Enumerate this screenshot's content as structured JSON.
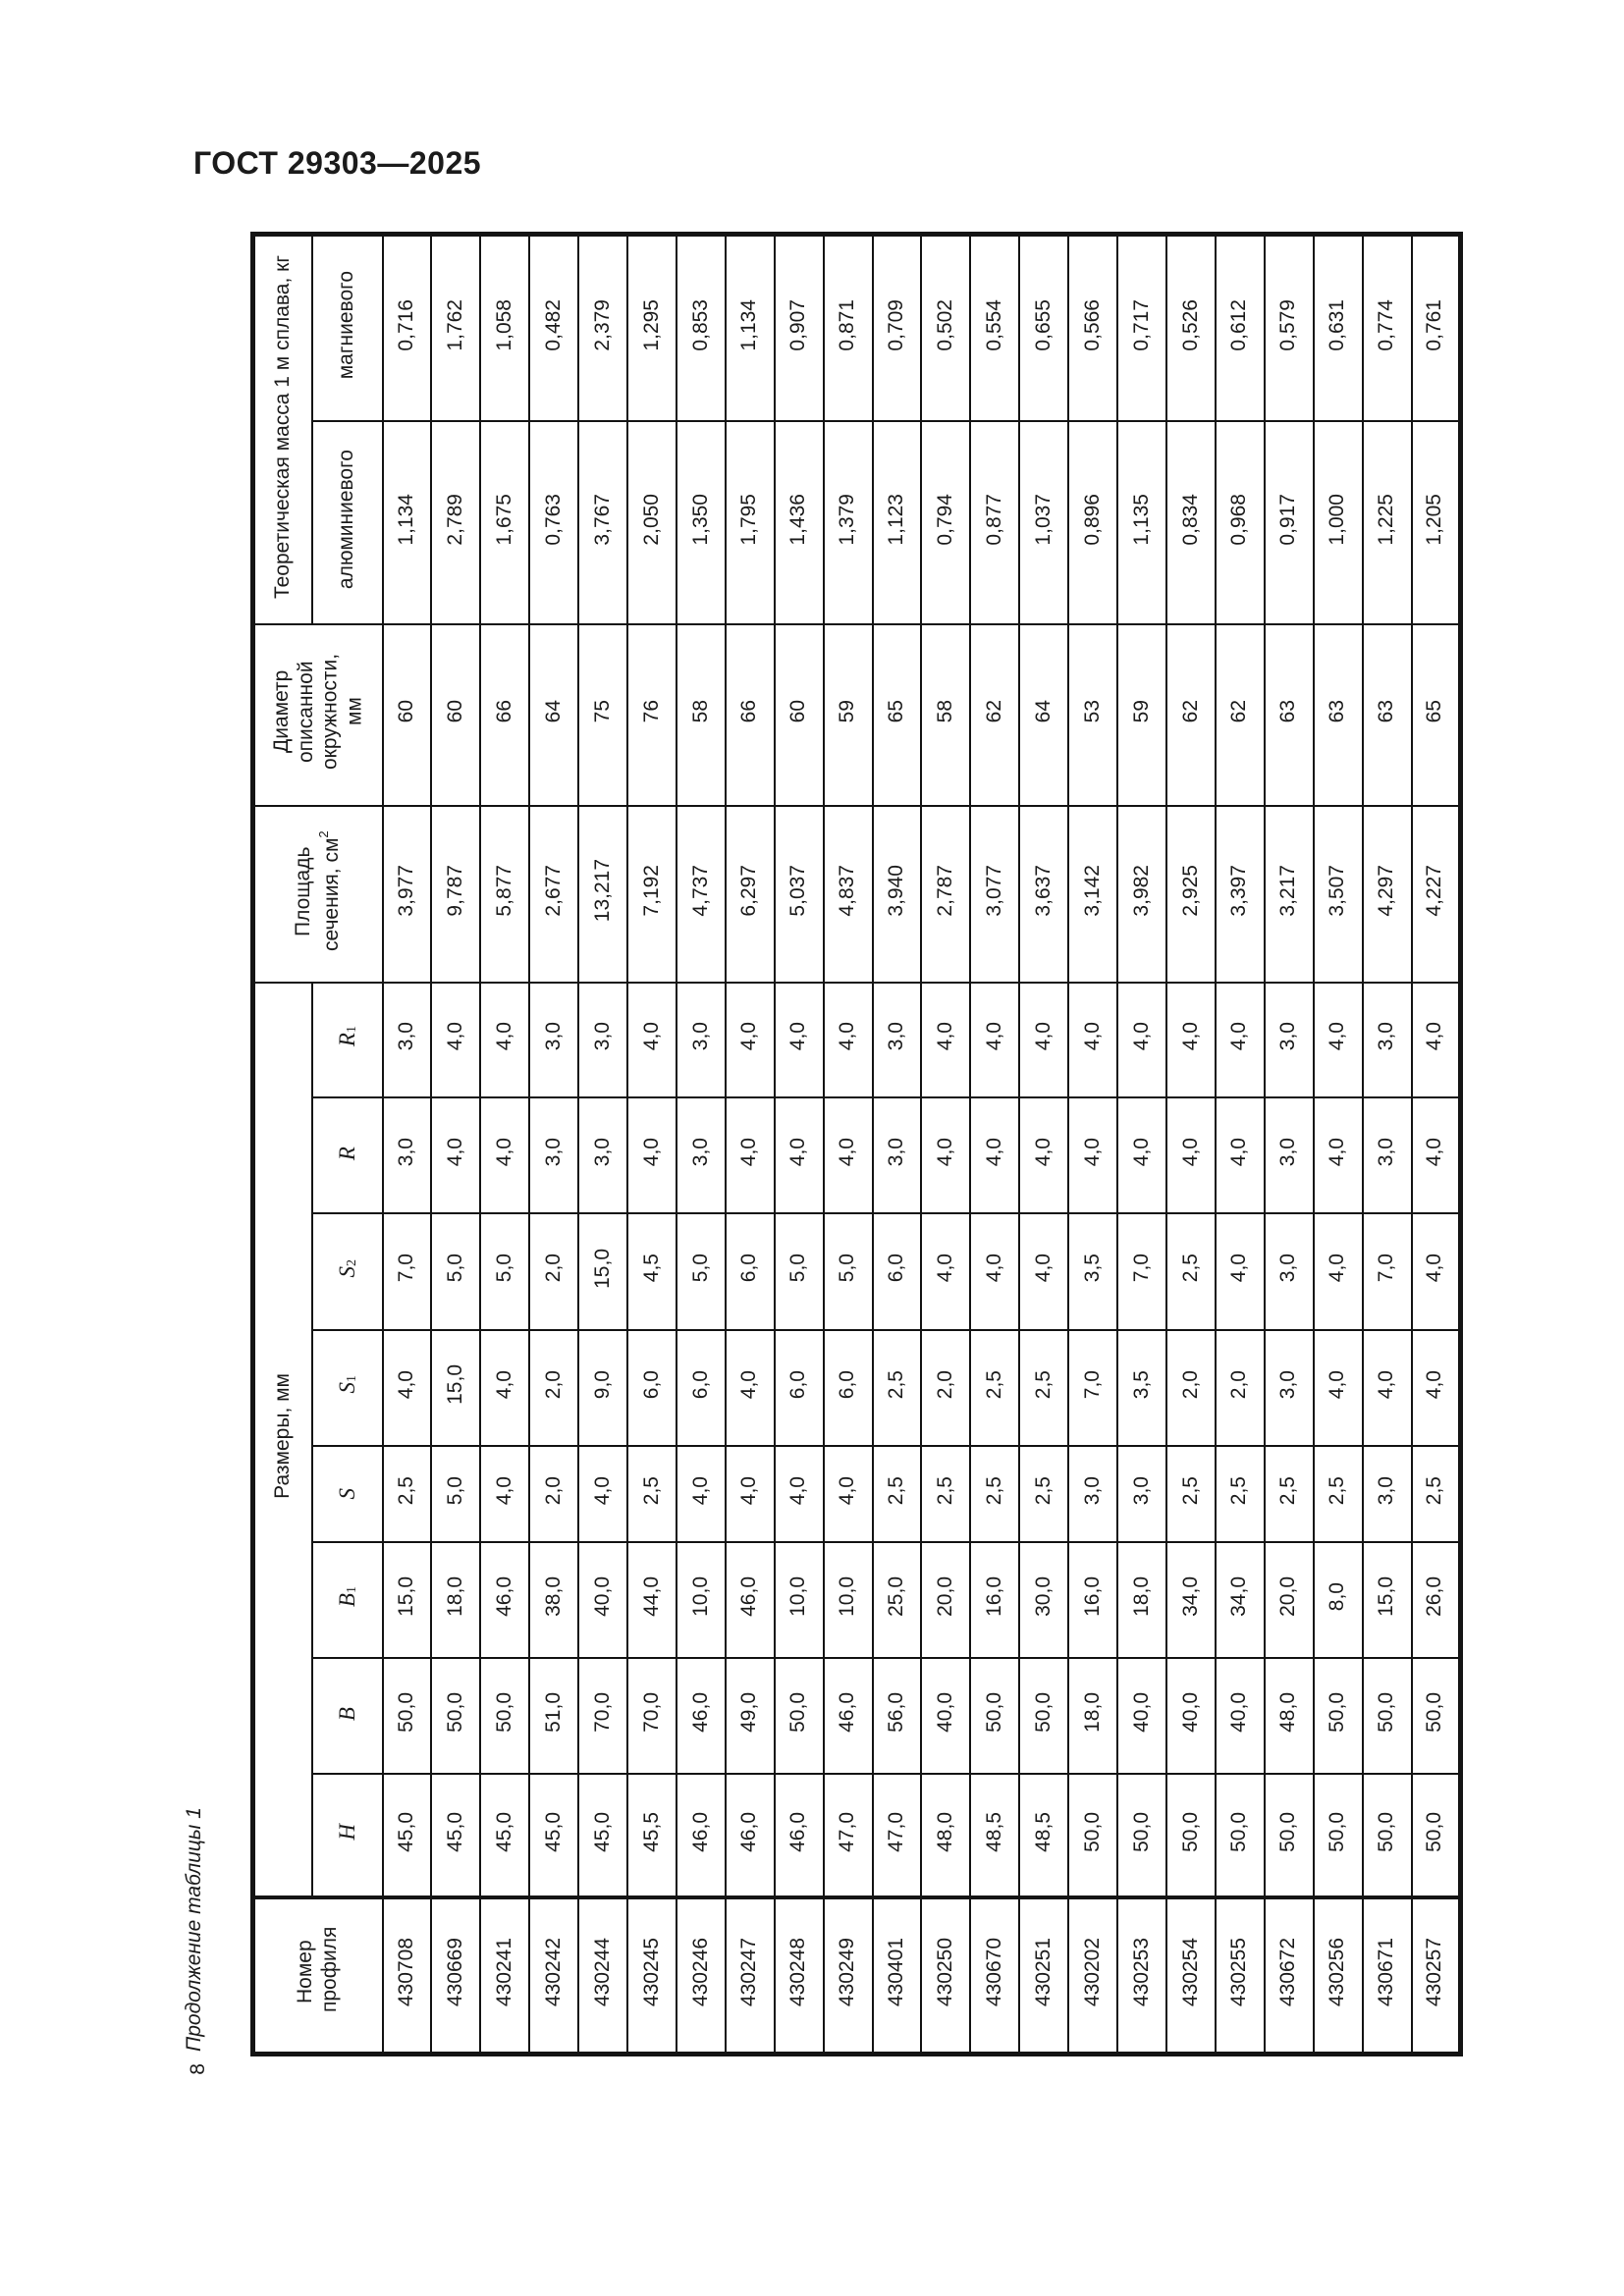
{
  "page": {
    "title": "ГОСТ 29303—2025",
    "table_caption": "Продолжение таблицы 1",
    "page_number": "8"
  },
  "table": {
    "header": {
      "profile_number": "Номер профиля",
      "dimensions_group": "Размеры, мм",
      "sizes": {
        "h": {
          "b": "H"
        },
        "b": {
          "b": "B"
        },
        "b1": {
          "b": "B",
          "s": "1"
        },
        "s": {
          "b": "S"
        },
        "s1": {
          "b": "S",
          "s": "1"
        },
        "s2": {
          "b": "S",
          "s": "2"
        },
        "r": {
          "b": "R"
        },
        "r1": {
          "b": "R",
          "s": "1"
        }
      },
      "area_base": "Площадь сечения, см",
      "area_sup": "2",
      "diameter": "Диаметр описанной окружности, мм",
      "mass_group": "Теоретическая масса 1 м сплава, кг",
      "mass_al": "алюминиевого",
      "mass_mg": "магниевого"
    },
    "values": {
      "mass_mg": [
        "0,716",
        "1,762",
        "1,058",
        "0,482",
        "2,379",
        "1,295",
        "0,853",
        "1,134",
        "0,907",
        "0,871",
        "0,709",
        "0,502",
        "0,554",
        "0,655",
        "0,566",
        "0,717",
        "0,526",
        "0,612",
        "0,579",
        "0,631",
        "0,774",
        "0,761"
      ],
      "mass_al": [
        "1,134",
        "2,789",
        "1,675",
        "0,763",
        "3,767",
        "2,050",
        "1,350",
        "1,795",
        "1,436",
        "1,379",
        "1,123",
        "0,794",
        "0,877",
        "1,037",
        "0,896",
        "1,135",
        "0,834",
        "0,968",
        "0,917",
        "1,000",
        "1,225",
        "1,205"
      ],
      "diameter": [
        "60",
        "60",
        "66",
        "64",
        "75",
        "76",
        "58",
        "66",
        "60",
        "59",
        "65",
        "58",
        "62",
        "64",
        "53",
        "59",
        "62",
        "62",
        "63",
        "63",
        "63",
        "65"
      ],
      "area": [
        "3,977",
        "9,787",
        "5,877",
        "2,677",
        "13,217",
        "7,192",
        "4,737",
        "6,297",
        "5,037",
        "4,837",
        "3,940",
        "2,787",
        "3,077",
        "3,637",
        "3,142",
        "3,982",
        "2,925",
        "3,397",
        "3,217",
        "3,507",
        "4,297",
        "4,227"
      ],
      "r1": [
        "3,0",
        "4,0",
        "4,0",
        "3,0",
        "3,0",
        "4,0",
        "3,0",
        "4,0",
        "4,0",
        "4,0",
        "3,0",
        "4,0",
        "4,0",
        "4,0",
        "4,0",
        "4,0",
        "4,0",
        "4,0",
        "3,0",
        "4,0",
        "3,0",
        "4,0"
      ],
      "r": [
        "3,0",
        "4,0",
        "4,0",
        "3,0",
        "3,0",
        "4,0",
        "3,0",
        "4,0",
        "4,0",
        "4,0",
        "3,0",
        "4,0",
        "4,0",
        "4,0",
        "4,0",
        "4,0",
        "4,0",
        "4,0",
        "3,0",
        "4,0",
        "3,0",
        "4,0"
      ],
      "s2": [
        "7,0",
        "5,0",
        "5,0",
        "2,0",
        "15,0",
        "4,5",
        "5,0",
        "6,0",
        "5,0",
        "5,0",
        "6,0",
        "4,0",
        "4,0",
        "4,0",
        "3,5",
        "7,0",
        "2,5",
        "4,0",
        "3,0",
        "4,0",
        "7,0",
        "4,0"
      ],
      "s1": [
        "4,0",
        "15,0",
        "4,0",
        "2,0",
        "9,0",
        "6,0",
        "6,0",
        "4,0",
        "6,0",
        "6,0",
        "2,5",
        "2,0",
        "2,5",
        "2,5",
        "7,0",
        "3,5",
        "2,0",
        "2,0",
        "3,0",
        "4,0",
        "4,0",
        "4,0"
      ],
      "s": [
        "2,5",
        "5,0",
        "4,0",
        "2,0",
        "4,0",
        "2,5",
        "4,0",
        "4,0",
        "4,0",
        "4,0",
        "2,5",
        "2,5",
        "2,5",
        "2,5",
        "3,0",
        "3,0",
        "2,5",
        "2,5",
        "2,5",
        "2,5",
        "3,0",
        "2,5"
      ],
      "b1": [
        "15,0",
        "18,0",
        "46,0",
        "38,0",
        "40,0",
        "44,0",
        "10,0",
        "46,0",
        "10,0",
        "10,0",
        "25,0",
        "20,0",
        "16,0",
        "30,0",
        "16,0",
        "18,0",
        "34,0",
        "34,0",
        "20,0",
        "8,0",
        "15,0",
        "26,0"
      ],
      "b": [
        "50,0",
        "50,0",
        "50,0",
        "51,0",
        "70,0",
        "70,0",
        "46,0",
        "49,0",
        "50,0",
        "46,0",
        "56,0",
        "40,0",
        "50,0",
        "50,0",
        "18,0",
        "40,0",
        "40,0",
        "40,0",
        "48,0",
        "50,0",
        "50,0",
        "50,0"
      ],
      "h": [
        "45,0",
        "45,0",
        "45,0",
        "45,0",
        "45,0",
        "45,5",
        "46,0",
        "46,0",
        "46,0",
        "47,0",
        "47,0",
        "48,0",
        "48,5",
        "48,5",
        "50,0",
        "50,0",
        "50,0",
        "50,0",
        "50,0",
        "50,0",
        "50,0",
        "50,0"
      ],
      "num": [
        "430708",
        "430669",
        "430241",
        "430242",
        "430244",
        "430245",
        "430246",
        "430247",
        "430248",
        "430249",
        "430401",
        "430250",
        "430670",
        "430251",
        "430202",
        "430253",
        "430254",
        "430255",
        "430672",
        "430256",
        "430671",
        "430257"
      ]
    }
  }
}
